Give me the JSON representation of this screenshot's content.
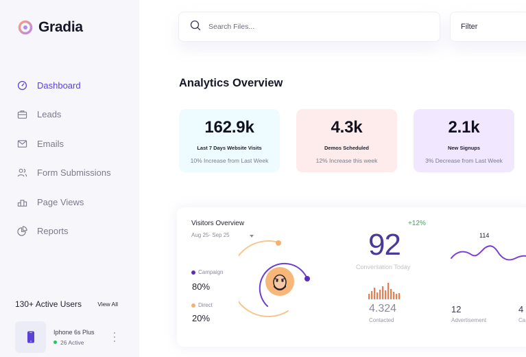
{
  "app": {
    "name": "Gradia",
    "brand_color": "#5b3fd6"
  },
  "sidebar": {
    "items": [
      {
        "label": "Dashboard",
        "icon": "gauge-icon",
        "active": true
      },
      {
        "label": "Leads",
        "icon": "briefcase-icon",
        "active": false
      },
      {
        "label": "Emails",
        "icon": "envelope-icon",
        "active": false
      },
      {
        "label": "Form Submissions",
        "icon": "users-icon",
        "active": false
      },
      {
        "label": "Page Views",
        "icon": "podium-icon",
        "active": false
      },
      {
        "label": "Reports",
        "icon": "pie-chart-icon",
        "active": false
      }
    ],
    "active_users": {
      "title": "130+ Active Users",
      "link": "View All"
    },
    "device": {
      "name": "Iphone 6s Plus",
      "status": "26 Active",
      "icon": "phone-icon",
      "status_color": "#22c55e"
    }
  },
  "topbar": {
    "search": {
      "placeholder": "Search Files...",
      "icon": "search-icon"
    },
    "filter_label": "Filter"
  },
  "main": {
    "title": "Analytics Overview",
    "stats": [
      {
        "value": "162.9k",
        "label": "Last 7 Days Website Visits",
        "sub": "10% Increase from Last Week",
        "color": "#eefcff"
      },
      {
        "value": "4.3k",
        "label": "Demos Scheduled",
        "sub": "12% Increase this week",
        "color": "#fdeceb"
      },
      {
        "value": "2.1k",
        "label": "New Signups",
        "sub": "3% Decrease from Last Week",
        "color": "#f1e8ff"
      }
    ],
    "visitors": {
      "title": "Visitors Overview",
      "range": "Aug 25- Sep 25",
      "legend": [
        {
          "name": "Campaign",
          "percent": "80%",
          "value": 80,
          "color": "#5b2dbd"
        },
        {
          "name": "Direct",
          "percent": "20%",
          "value": 20,
          "color": "#f5b26e"
        }
      ],
      "conversation": {
        "value": "92",
        "label": "Conversation Today",
        "growth": "+12%"
      },
      "contacted": {
        "value": "4.324",
        "label": "Contacted"
      },
      "trend_peak": "114",
      "advertisement": {
        "value": "12",
        "label": "Advertisement"
      },
      "extra": {
        "value": "4",
        "label": "Ca"
      }
    }
  }
}
